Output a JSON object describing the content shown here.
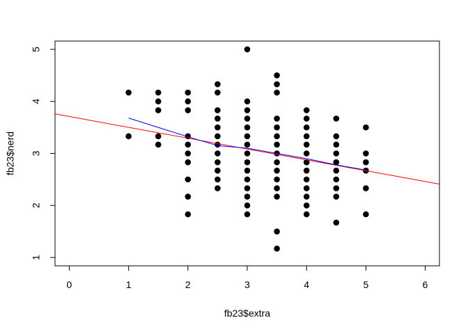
{
  "chart_data": {
    "type": "scatter",
    "xlabel": "fb23$extra",
    "ylabel": "fb23$nerd",
    "xlim": [
      -0.24,
      6.24
    ],
    "ylim": [
      0.84,
      5.16
    ],
    "x_ticks": [
      "0",
      "1",
      "2",
      "3",
      "4",
      "5",
      "6"
    ],
    "y_ticks": [
      "1",
      "2",
      "3",
      "4",
      "5"
    ],
    "grid": false,
    "legend": "none",
    "colors": {
      "points": "#000000",
      "regression_line": "#ff0000",
      "smooth_line": "#0000ff"
    },
    "points": [
      [
        1,
        4.17
      ],
      [
        1,
        3.33
      ],
      [
        1.5,
        4.17
      ],
      [
        1.5,
        4.0
      ],
      [
        1.5,
        3.83
      ],
      [
        1.5,
        3.33
      ],
      [
        1.5,
        3.17
      ],
      [
        2,
        4.17
      ],
      [
        2,
        4.0
      ],
      [
        2,
        3.83
      ],
      [
        2,
        3.33
      ],
      [
        2,
        3.17
      ],
      [
        2,
        3.0
      ],
      [
        2,
        2.83
      ],
      [
        2,
        2.5
      ],
      [
        2,
        2.17
      ],
      [
        2,
        1.83
      ],
      [
        2.5,
        4.33
      ],
      [
        2.5,
        4.17
      ],
      [
        2.5,
        3.83
      ],
      [
        2.5,
        3.67
      ],
      [
        2.5,
        3.5
      ],
      [
        2.5,
        3.33
      ],
      [
        2.5,
        3.17
      ],
      [
        2.5,
        3.0
      ],
      [
        2.5,
        2.83
      ],
      [
        2.5,
        2.67
      ],
      [
        2.5,
        2.5
      ],
      [
        2.5,
        2.33
      ],
      [
        3,
        5.0
      ],
      [
        3,
        4.0
      ],
      [
        3,
        3.83
      ],
      [
        3,
        3.67
      ],
      [
        3,
        3.5
      ],
      [
        3,
        3.33
      ],
      [
        3,
        3.17
      ],
      [
        3,
        3.0
      ],
      [
        3,
        2.83
      ],
      [
        3,
        2.67
      ],
      [
        3,
        2.5
      ],
      [
        3,
        2.33
      ],
      [
        3,
        2.17
      ],
      [
        3,
        2.0
      ],
      [
        3,
        1.83
      ],
      [
        3.5,
        4.5
      ],
      [
        3.5,
        4.33
      ],
      [
        3.5,
        4.17
      ],
      [
        3.5,
        3.67
      ],
      [
        3.5,
        3.5
      ],
      [
        3.5,
        3.33
      ],
      [
        3.5,
        3.17
      ],
      [
        3.5,
        3.0
      ],
      [
        3.5,
        2.83
      ],
      [
        3.5,
        2.67
      ],
      [
        3.5,
        2.5
      ],
      [
        3.5,
        2.33
      ],
      [
        3.5,
        2.17
      ],
      [
        3.5,
        1.5
      ],
      [
        3.5,
        1.17
      ],
      [
        4,
        3.83
      ],
      [
        4,
        3.67
      ],
      [
        4,
        3.5
      ],
      [
        4,
        3.33
      ],
      [
        4,
        3.17
      ],
      [
        4,
        3.0
      ],
      [
        4,
        2.83
      ],
      [
        4,
        2.67
      ],
      [
        4,
        2.5
      ],
      [
        4,
        2.33
      ],
      [
        4,
        2.17
      ],
      [
        4,
        2.0
      ],
      [
        4,
        1.83
      ],
      [
        4.5,
        3.67
      ],
      [
        4.5,
        3.33
      ],
      [
        4.5,
        3.17
      ],
      [
        4.5,
        3.0
      ],
      [
        4.5,
        2.83
      ],
      [
        4.5,
        2.67
      ],
      [
        4.5,
        2.5
      ],
      [
        4.5,
        2.33
      ],
      [
        4.5,
        2.17
      ],
      [
        4.5,
        1.67
      ],
      [
        5,
        3.5
      ],
      [
        5,
        3.0
      ],
      [
        5,
        2.83
      ],
      [
        5,
        2.67
      ],
      [
        5,
        2.33
      ],
      [
        5,
        1.83
      ]
    ],
    "regression_line": {
      "x": [
        -0.24,
        6.24
      ],
      "y": [
        3.76,
        2.41
      ]
    },
    "smooth_line": {
      "x": [
        1,
        1.5,
        2,
        2.5,
        3,
        3.5,
        4,
        4.5,
        5
      ],
      "y": [
        3.68,
        3.5,
        3.32,
        3.15,
        3.1,
        3.0,
        2.9,
        2.78,
        2.68
      ]
    }
  }
}
